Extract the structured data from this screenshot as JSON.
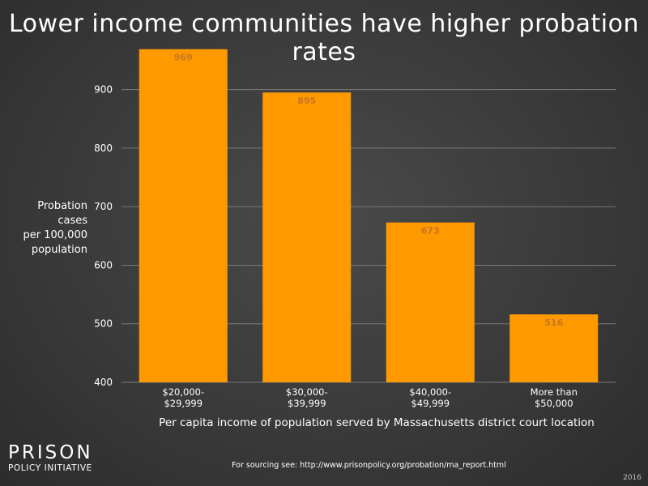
{
  "chart_data": {
    "type": "bar",
    "title": "Lower income communities have higher probation rates",
    "ylabel": "Probation cases\nper 100,000\npopulation",
    "xlabel": "Per capita income of population served by Massachusetts district court location",
    "categories": [
      "$20,000-\n$29,999",
      "$30,000-\n$39,999",
      "$40,000-\n$49,999",
      "More than\n$50,000"
    ],
    "values": [
      969,
      895,
      673,
      516
    ],
    "data_labels": [
      "969",
      "895",
      "673",
      "516"
    ],
    "ylim": [
      400,
      970
    ],
    "yticks": [
      400,
      500,
      600,
      700,
      800,
      900
    ],
    "grid": true,
    "legend": "none",
    "colors": {
      "bar": "#ff9900",
      "data_label": "#c8761f",
      "grid": "#7a7a7a",
      "text": "#ffffff"
    }
  },
  "branding": {
    "logo_top": "PRISON",
    "logo_bottom": "POLICY INITIATIVE",
    "source": "For sourcing see: http://www.prisonpolicy.org/probation/ma_report.html",
    "year": "2016"
  }
}
